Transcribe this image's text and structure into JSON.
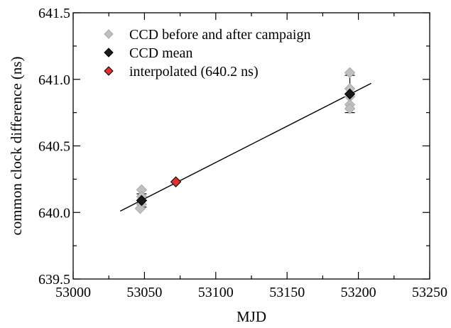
{
  "chart_data": {
    "type": "scatter",
    "xlabel": "MJD",
    "ylabel": "common clock difference (ns)",
    "xlim": [
      53000,
      53250
    ],
    "ylim": [
      639.5,
      641.5
    ],
    "x_ticks": [
      53000,
      53050,
      53100,
      53150,
      53200,
      53250
    ],
    "x_tick_labels": [
      "53000",
      "53050",
      "53100",
      "53150",
      "53200",
      "53250"
    ],
    "y_ticks": [
      639.5,
      640.0,
      640.5,
      641.0,
      641.5
    ],
    "y_tick_labels": [
      "639.5",
      "640.0",
      "640.5",
      "641.0",
      "641.5"
    ],
    "grid": false,
    "legend_position": "top-left",
    "series": [
      {
        "name": "CCD before and after campaign",
        "marker": "diamond",
        "color": "#c0c0c0",
        "points": [
          {
            "x": 53048,
            "y": 640.17
          },
          {
            "x": 53048,
            "y": 640.12
          },
          {
            "x": 53048,
            "y": 640.06
          },
          {
            "x": 53047,
            "y": 640.03
          },
          {
            "x": 53194,
            "y": 641.05
          },
          {
            "x": 53194,
            "y": 640.93
          },
          {
            "x": 53194,
            "y": 640.87
          },
          {
            "x": 53194,
            "y": 640.81
          },
          {
            "x": 53194,
            "y": 640.78
          }
        ]
      },
      {
        "name": "CCD mean",
        "marker": "diamond",
        "color": "#1a1a1a",
        "points": [
          {
            "x": 53048,
            "y": 640.09,
            "err": 0.05
          },
          {
            "x": 53194,
            "y": 640.89,
            "err": 0.14
          }
        ]
      },
      {
        "name": "interpolated (640.2 ns)",
        "marker": "diamond",
        "color": "#e03030",
        "points": [
          {
            "x": 53072,
            "y": 640.23
          }
        ]
      }
    ],
    "fit_line": {
      "x": [
        53033,
        53209
      ],
      "y": [
        640.01,
        640.97
      ],
      "color": "#000000"
    }
  }
}
